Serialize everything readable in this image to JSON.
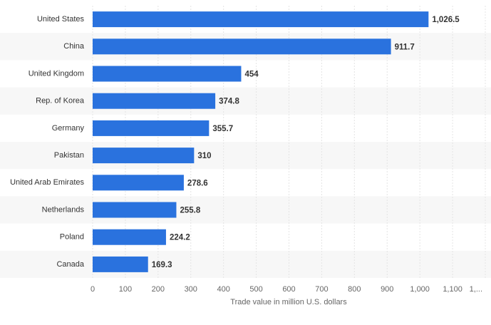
{
  "chart_data": {
    "type": "bar",
    "orientation": "horizontal",
    "x_label": "Trade value in million U.S. dollars",
    "categories": [
      "United States",
      "China",
      "United Kingdom",
      "Rep. of Korea",
      "Germany",
      "Pakistan",
      "United Arab Emirates",
      "Netherlands",
      "Poland",
      "Canada"
    ],
    "values": [
      1026.5,
      911.7,
      454,
      374.8,
      355.7,
      310,
      278.6,
      255.8,
      224.2,
      169.3
    ],
    "value_labels": [
      "1,026.5",
      "911.7",
      "454",
      "374.8",
      "355.7",
      "310",
      "278.6",
      "255.8",
      "224.2",
      "169.3"
    ],
    "color": "#2a72de",
    "xlim": [
      0,
      1200
    ],
    "xticks": [
      0,
      100,
      200,
      300,
      400,
      500,
      600,
      700,
      800,
      900,
      {
        "value": 1000,
        "label": "1,000"
      },
      {
        "value": 1100,
        "label": "1,100"
      },
      {
        "value": 1200,
        "label": "1,..."
      }
    ],
    "grid": true
  }
}
